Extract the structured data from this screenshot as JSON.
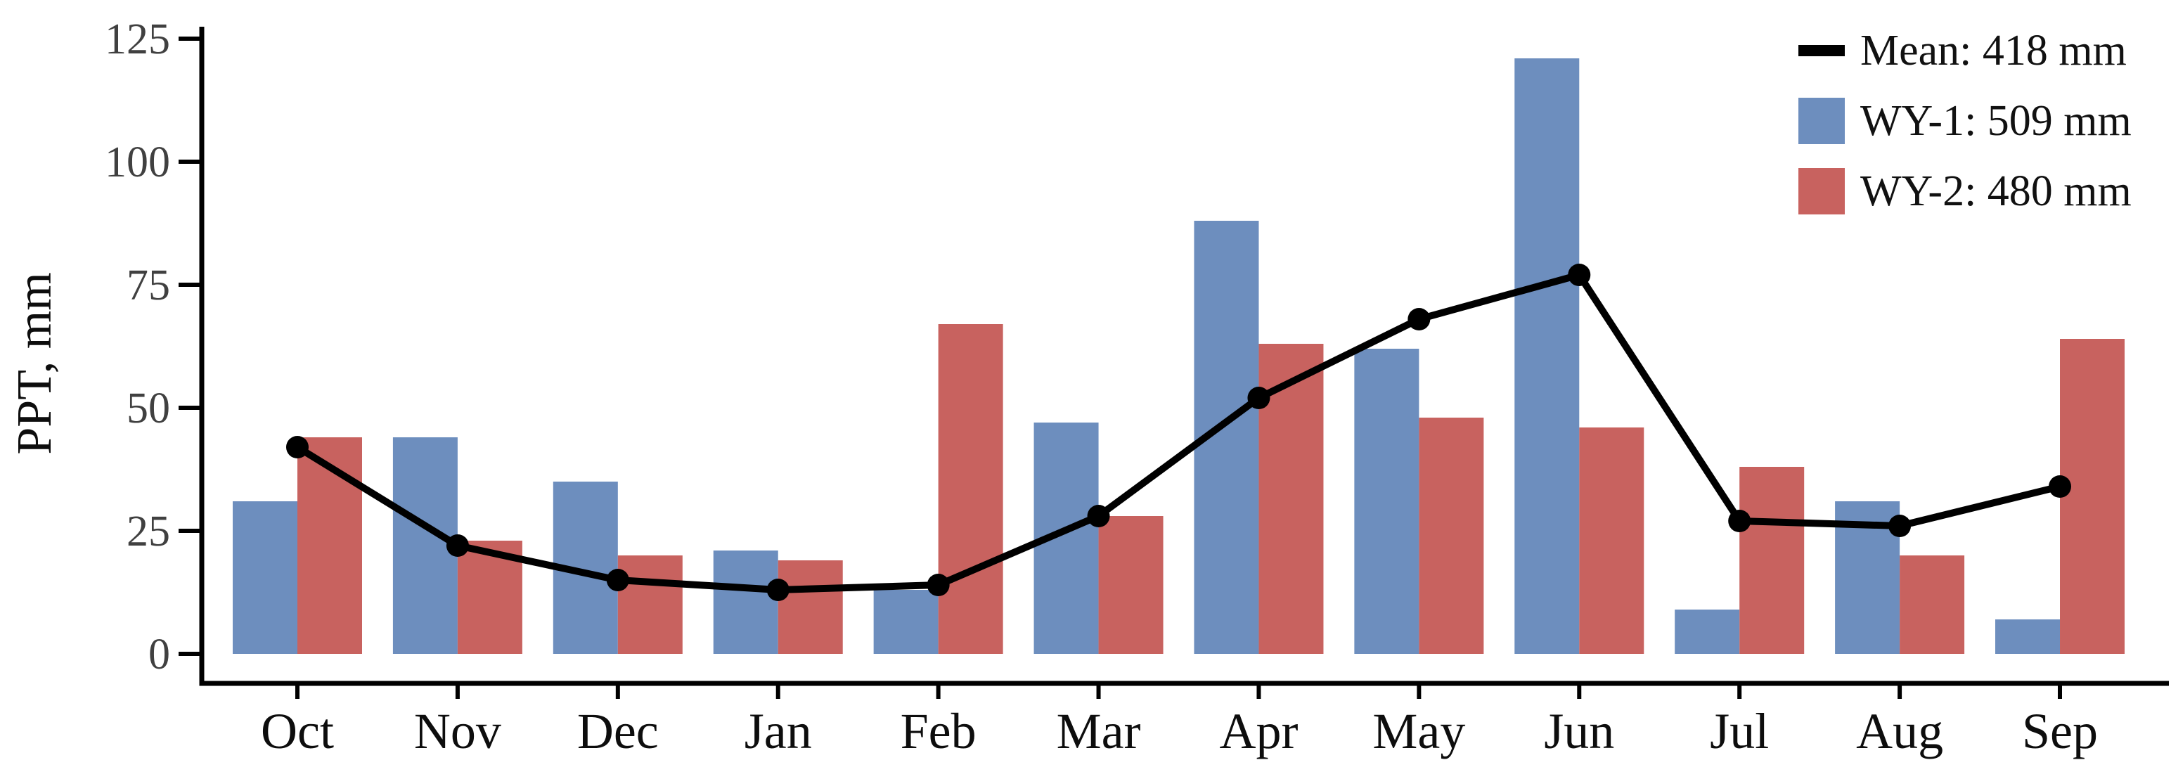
{
  "chart_data": {
    "type": "bar",
    "subtype": "grouped-bars-with-line-overlay",
    "title": "",
    "xlabel": "",
    "ylabel": "PPT, mm",
    "categories": [
      "Oct",
      "Nov",
      "Dec",
      "Jan",
      "Feb",
      "Mar",
      "Apr",
      "May",
      "Jun",
      "Jul",
      "Aug",
      "Sep"
    ],
    "series": [
      {
        "name": "WY-1: 509 mm",
        "render": "bar",
        "color": "#6d8ebe",
        "values": [
          31,
          44,
          35,
          21,
          13,
          47,
          88,
          62,
          121,
          9,
          31,
          7
        ],
        "total_mm": 509
      },
      {
        "name": "WY-2: 480 mm",
        "render": "bar",
        "color": "#c8625f",
        "values": [
          44,
          23,
          20,
          19,
          67,
          28,
          63,
          48,
          46,
          38,
          20,
          64
        ],
        "total_mm": 480
      },
      {
        "name": "Mean: 418 mm",
        "render": "line-with-markers",
        "color": "#000000",
        "values": [
          42,
          22,
          15,
          13,
          14,
          28,
          52,
          68,
          77,
          27,
          26,
          34
        ],
        "total_mm": 418
      }
    ],
    "yticks": [
      0,
      25,
      50,
      75,
      100,
      125
    ],
    "ylim": [
      0,
      125
    ],
    "grid": false,
    "legend_position": "top-right",
    "axis_color": "#000000",
    "ytick_label_color": "#404040"
  },
  "legend": {
    "items": [
      {
        "id": "mean",
        "swatch": "line",
        "color": "#000000",
        "label": "Mean: 418 mm"
      },
      {
        "id": "wy1",
        "swatch": "square",
        "color": "#6d8ebe",
        "label": "WY-1: 509 mm"
      },
      {
        "id": "wy2",
        "swatch": "square",
        "color": "#c8625f",
        "label": "WY-2: 480 mm"
      }
    ]
  }
}
